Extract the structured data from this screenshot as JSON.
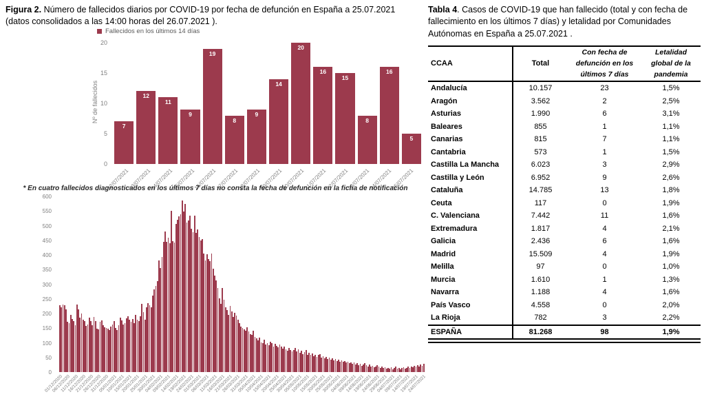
{
  "colors": {
    "bar": "#9c3a4d",
    "axis_text": "#7f7f7f",
    "legend_text": "#595959",
    "value_label": "#ffffff"
  },
  "figura2": {
    "title_bold": "Figura 2.",
    "title_rest": " Número de fallecidos diarios por COVID-19 por fecha de defunción en España a 25.07.2021  (datos consolidados a las 14:00 horas del 26.07.2021 ).",
    "legend": "Fallecidos en los últimos 14 días",
    "ylabel": "Nº de fallecidos",
    "footnote": "* En cuatro fallecidos diagnosticados en los últimos 7 días no consta la fecha de defunción en la ficha de notificación"
  },
  "tabla4": {
    "title_bold": "Tabla 4",
    "title_rest": ". Casos de COVID-19 que han fallecido (total y con fecha de fallecimiento en los últimos 7 días) y letalidad por Comunidades Autónomas en España a 25.07.2021 .",
    "headers": [
      "CCAA",
      "Total",
      "Con fecha de defunción en los últimos 7 días",
      "Letalidad global de la pandemia"
    ],
    "rows": [
      [
        "Andalucía",
        "10.157",
        "23",
        "1,5%"
      ],
      [
        "Aragón",
        "3.562",
        "2",
        "2,5%"
      ],
      [
        "Asturias",
        "1.990",
        "6",
        "3,1%"
      ],
      [
        "Baleares",
        "855",
        "1",
        "1,1%"
      ],
      [
        "Canarias",
        "815",
        "7",
        "1,1%"
      ],
      [
        "Cantabria",
        "573",
        "1",
        "1,5%"
      ],
      [
        "Castilla La Mancha",
        "6.023",
        "3",
        "2,9%"
      ],
      [
        "Castilla y León",
        "6.952",
        "9",
        "2,6%"
      ],
      [
        "Cataluña",
        "14.785",
        "13",
        "1,8%"
      ],
      [
        "Ceuta",
        "117",
        "0",
        "1,9%"
      ],
      [
        "C. Valenciana",
        "7.442",
        "11",
        "1,6%"
      ],
      [
        "Extremadura",
        "1.817",
        "4",
        "2,1%"
      ],
      [
        "Galicia",
        "2.436",
        "6",
        "1,6%"
      ],
      [
        "Madrid",
        "15.509",
        "4",
        "1,9%"
      ],
      [
        "Melilla",
        "97",
        "0",
        "1,0%"
      ],
      [
        "Murcia",
        "1.610",
        "1",
        "1,3%"
      ],
      [
        "Navarra",
        "1.188",
        "4",
        "1,6%"
      ],
      [
        "País Vasco",
        "4.558",
        "0",
        "2,0%"
      ],
      [
        "La Rioja",
        "782",
        "3",
        "2,2%"
      ]
    ],
    "total_row": [
      "ESPAÑA",
      "81.268",
      "98",
      "1,9%"
    ]
  },
  "chart_data": [
    {
      "type": "bar",
      "title": "Fallecidos en los últimos 14 días",
      "xlabel": "",
      "ylabel": "Nº de fallecidos",
      "categories": [
        "12/07/2021",
        "13/07/2021",
        "14/07/2021",
        "15/07/2021",
        "16/07/2021",
        "17/07/2021",
        "18/07/2021",
        "19/07/2021",
        "20/07/2021",
        "21/07/2021",
        "22/07/2021",
        "23/07/2021",
        "24/07/2021",
        "25/07/2021"
      ],
      "values": [
        7,
        12,
        11,
        9,
        19,
        8,
        9,
        14,
        20,
        16,
        15,
        8,
        16,
        5
      ],
      "ylim": [
        0,
        20
      ],
      "yticks": [
        0,
        5,
        10,
        15,
        20
      ],
      "grid": false,
      "legend_position": "top-left",
      "data_labels": "inside-top-white"
    },
    {
      "type": "bar",
      "title": "",
      "xlabel": "",
      "ylabel": "",
      "ylim": [
        0,
        600
      ],
      "yticks": [
        0,
        50,
        100,
        150,
        200,
        250,
        300,
        350,
        400,
        450,
        500,
        550,
        600
      ],
      "grid": false,
      "x_start": "01/12/2020",
      "x_end": "24/07/2021",
      "x_tick_labels": [
        "01/12/2020",
        "06/12/2020",
        "11/12/2020",
        "16/12/2020",
        "21/12/2020",
        "26/12/2020",
        "31/12/2020",
        "05/01/2021",
        "10/01/2021",
        "15/01/2021",
        "20/01/2021",
        "25/01/2021",
        "30/01/2021",
        "04/02/2021",
        "09/02/2021",
        "14/02/2021",
        "19/02/2021",
        "24/02/2021",
        "01/03/2021",
        "06/03/2021",
        "11/03/2021",
        "16/03/2021",
        "21/03/2021",
        "26/03/2021",
        "31/03/2021",
        "05/04/2021",
        "10/04/2021",
        "15/04/2021",
        "20/04/2021",
        "25/04/2021",
        "30/04/2021",
        "05/05/2021",
        "10/05/2021",
        "15/05/2021",
        "20/05/2021",
        "25/05/2021",
        "30/05/2021",
        "04/06/2021",
        "09/06/2021",
        "14/06/2021",
        "19/06/2021",
        "24/06/2021",
        "29/06/2021",
        "04/07/2021",
        "09/07/2021",
        "14/07/2021",
        "19/07/2021",
        "24/07/2021"
      ],
      "values": [
        228,
        221,
        231,
        229,
        215,
        172,
        166,
        196,
        182,
        174,
        161,
        230,
        214,
        186,
        199,
        178,
        173,
        158,
        163,
        186,
        174,
        159,
        189,
        174,
        148,
        146,
        171,
        177,
        161,
        154,
        150,
        148,
        144,
        155,
        162,
        174,
        151,
        143,
        161,
        187,
        176,
        162,
        166,
        184,
        191,
        179,
        172,
        182,
        168,
        196,
        178,
        173,
        190,
        232,
        205,
        178,
        221,
        236,
        229,
        222,
        261,
        282,
        295,
        310,
        382,
        355,
        392,
        445,
        480,
        445,
        458,
        440,
        550,
        448,
        442,
        505,
        520,
        532,
        540,
        585,
        548,
        573,
        510,
        518,
        535,
        490,
        478,
        534,
        475,
        488,
        462,
        450,
        455,
        405,
        382,
        402,
        385,
        378,
        404,
        352,
        330,
        312,
        288,
        252,
        232,
        286,
        246,
        222,
        212,
        196,
        226,
        206,
        188,
        202,
        192,
        180,
        166,
        156,
        150,
        146,
        142,
        152,
        138,
        130,
        126,
        142,
        120,
        115,
        108,
        118,
        102,
        98,
        110,
        95,
        100,
        92,
        104,
        98,
        88,
        96,
        90,
        84,
        95,
        88,
        80,
        86,
        78,
        74,
        82,
        76,
        70,
        75,
        82,
        70,
        78,
        66,
        72,
        62,
        68,
        75,
        60,
        65,
        58,
        64,
        55,
        60,
        52,
        58,
        62,
        50,
        55,
        48,
        52,
        45,
        50,
        42,
        46,
        40,
        44,
        38,
        42,
        36,
        40,
        35,
        38,
        32,
        36,
        30,
        34,
        28,
        32,
        26,
        30,
        24,
        28,
        22,
        26,
        30,
        24,
        20,
        25,
        18,
        22,
        16,
        20,
        24,
        18,
        15,
        19,
        14,
        17,
        12,
        15,
        12,
        16,
        10,
        14,
        18,
        12,
        15,
        10,
        13,
        17,
        11,
        14,
        18,
        15,
        20,
        16,
        22,
        18,
        24,
        20,
        26,
        22,
        28
      ]
    }
  ]
}
